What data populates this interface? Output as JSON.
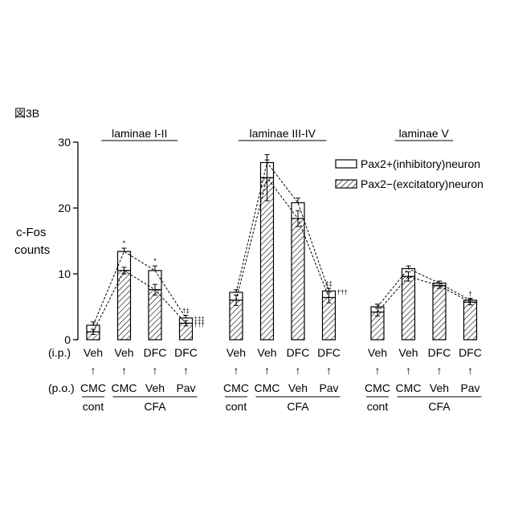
{
  "figure_label": "図3B",
  "y_axis_label_line1": "c-Fos",
  "y_axis_label_line2": "counts",
  "legend": {
    "inhibitory": "Pax2+(inhibitory)neuron",
    "excitatory": "Pax2−(excitatory)neuron"
  },
  "row_labels": {
    "ip": "(i.p.)",
    "po": "(p.o.)"
  },
  "arrow_glyph": "↑",
  "group_labels": {
    "cont": "cont",
    "cfa": "CFA"
  },
  "chart_data": {
    "type": "bar",
    "stacked": true,
    "ylim": [
      0,
      30
    ],
    "yticks": [
      0,
      10,
      20,
      30
    ],
    "panels": [
      {
        "title": "laminae I-II",
        "ip": [
          "Veh",
          "Veh",
          "DFC",
          "DFC"
        ],
        "po": [
          "CMC",
          "CMC",
          "Veh",
          "Pav"
        ],
        "excitatory": [
          1.2,
          10.5,
          7.6,
          2.5
        ],
        "excitatory_err": [
          0.4,
          0.5,
          0.8,
          0.4
        ],
        "total": [
          2.2,
          13.4,
          10.5,
          3.3
        ],
        "total_err": [
          0.5,
          0.5,
          0.7,
          0.4
        ],
        "marks": [
          "",
          "*",
          "*",
          "†‡"
        ],
        "marks2": [
          "",
          "",
          "",
          "‡‡‡"
        ],
        "marks3": [
          "",
          "",
          "",
          "†††"
        ]
      },
      {
        "title": "laminae III-IV",
        "ip": [
          "Veh",
          "Veh",
          "DFC",
          "DFC"
        ],
        "po": [
          "CMC",
          "CMC",
          "Veh",
          "Pav"
        ],
        "excitatory": [
          6.0,
          24.6,
          18.4,
          6.4
        ],
        "excitatory_err": [
          0.8,
          3.5,
          1.2,
          0.8
        ],
        "total": [
          7.2,
          26.9,
          20.8,
          7.4
        ],
        "total_err": [
          0.4,
          0.4,
          0.7,
          0.4
        ],
        "marks": [
          "",
          "",
          "",
          "‡‡"
        ],
        "marks2": [
          "",
          "",
          "",
          "†††"
        ],
        "marks3": [
          "",
          "",
          "",
          ""
        ]
      },
      {
        "title": "laminae V",
        "ip": [
          "Veh",
          "Veh",
          "DFC",
          "DFC"
        ],
        "po": [
          "CMC",
          "CMC",
          "Veh",
          "Pav"
        ],
        "excitatory": [
          4.2,
          9.6,
          8.2,
          5.7
        ],
        "excitatory_err": [
          0.6,
          0.7,
          0.4,
          0.4
        ],
        "total": [
          5.0,
          10.8,
          8.6,
          6.0
        ],
        "total_err": [
          0.4,
          0.4,
          0.3,
          0.3
        ],
        "marks": [
          "",
          "",
          "",
          "†"
        ],
        "marks2": [
          "",
          "",
          "",
          ""
        ],
        "marks3": [
          "",
          "",
          "",
          ""
        ]
      }
    ]
  }
}
